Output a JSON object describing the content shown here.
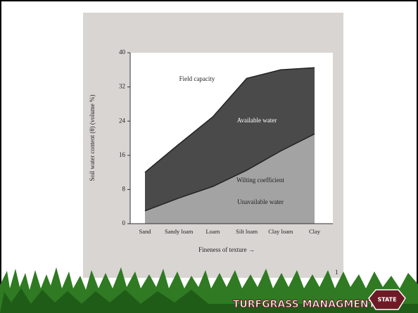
{
  "chart_data": {
    "type": "area",
    "y_label": "Soil water content (θ) (volume %)",
    "x_label": "Fineness of texture →",
    "categories": [
      "Sand",
      "Sandy loam",
      "Loam",
      "Silt loam",
      "Clay loam",
      "Clay"
    ],
    "series": [
      {
        "name": "Field capacity",
        "color": "#4a4a4a",
        "values": [
          12,
          18.6,
          25,
          34,
          36,
          36.5
        ]
      },
      {
        "name": "Wilting coefficient",
        "color": "#a3a3a3",
        "values": [
          3,
          6,
          8.7,
          12.5,
          17,
          21
        ]
      }
    ],
    "annotations": [
      "Available water",
      "Unavailable water"
    ],
    "ylim": [
      0,
      40
    ],
    "yticks": [
      0,
      8,
      16,
      24,
      32,
      40
    ]
  },
  "page_number": "1",
  "footer": {
    "text": "TURFGRASS MANAGMENT",
    "logo": "STATE"
  }
}
